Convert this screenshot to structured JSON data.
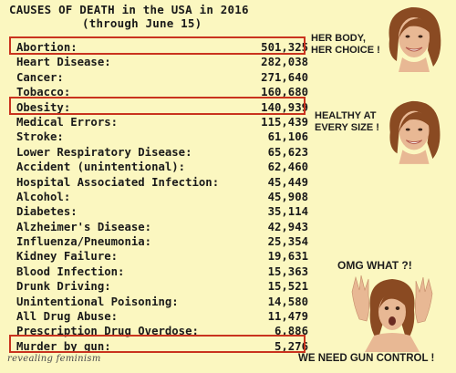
{
  "title": {
    "line1": "CAUSES OF DEATH in the USA in 2016",
    "line2": "(through June 15)"
  },
  "rows": [
    {
      "cause": "Abortion:",
      "count": "501,325"
    },
    {
      "cause": "Heart Disease:",
      "count": "282,038"
    },
    {
      "cause": "Cancer:",
      "count": "271,640"
    },
    {
      "cause": "Tobacco:",
      "count": "160,680"
    },
    {
      "cause": "Obesity:",
      "count": "140,939"
    },
    {
      "cause": "Medical Errors:",
      "count": "115,439"
    },
    {
      "cause": "Stroke:",
      "count": "61,106"
    },
    {
      "cause": "Lower Respiratory Disease:",
      "count": "65,623"
    },
    {
      "cause": "Accident (unintentional):",
      "count": "62,460"
    },
    {
      "cause": "Hospital Associated Infection:",
      "count": "45,449"
    },
    {
      "cause": "Alcohol:",
      "count": "45,908"
    },
    {
      "cause": "Diabetes:",
      "count": "35,114"
    },
    {
      "cause": "Alzheimer's Disease:",
      "count": "42,943"
    },
    {
      "cause": "Influenza/Pneumonia:",
      "count": "25,354"
    },
    {
      "cause": "Kidney Failure:",
      "count": "19,631"
    },
    {
      "cause": "Blood Infection:",
      "count": "15,363"
    },
    {
      "cause": "Drunk Driving:",
      "count": "15,521"
    },
    {
      "cause": "Unintentional Poisoning:",
      "count": "14,580"
    },
    {
      "cause": "All Drug Abuse:",
      "count": "11,479"
    },
    {
      "cause": "Prescription Drug Overdose:",
      "count": "6,886"
    },
    {
      "cause": "Murder by gun:",
      "count": "5,276"
    }
  ],
  "highlighted": [
    "Abortion:",
    "Obesity:",
    "Murder by gun:"
  ],
  "captions": {
    "abortion": {
      "line1": "HER BODY,",
      "line2": "HER CHOICE !"
    },
    "obesity": {
      "line1": "HEALTHY AT",
      "line2": "EVERY SIZE !"
    },
    "omg": "OMG WHAT ?!",
    "gun": "WE NEED GUN CONTROL !"
  },
  "watermark": "revealing feminism",
  "colors": {
    "background": "#fbf7c0",
    "highlight_box": "#c9331e",
    "hair": "#8a4a22",
    "skin": "#e8b894"
  }
}
